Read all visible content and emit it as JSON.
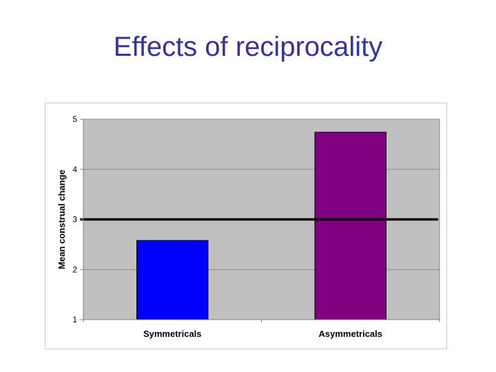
{
  "slide": {
    "title": "Effects of reciprocality"
  },
  "chart_data": {
    "type": "bar",
    "title": "",
    "xlabel": "",
    "ylabel": "Mean construal change",
    "categories": [
      "Symmetricals",
      "Asymmetricals"
    ],
    "values": [
      2.58,
      4.74
    ],
    "ylim": [
      1,
      5
    ],
    "yticks": [
      1,
      2,
      3,
      4,
      5
    ],
    "grid": true,
    "legend": "none",
    "reference_line": 3,
    "colors": {
      "bars": [
        "#0000ff",
        "#800080"
      ],
      "plot_background": "#c0c0c0",
      "gridline": "#8c8c8c",
      "reference_line": "#000000"
    }
  }
}
